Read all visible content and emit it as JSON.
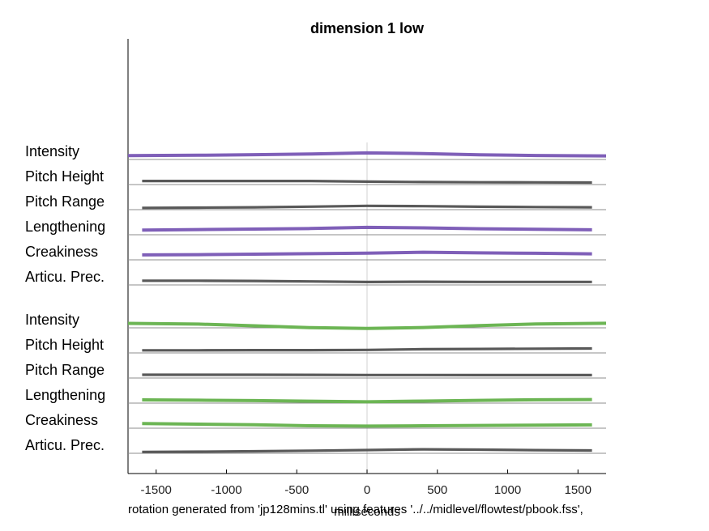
{
  "chart_data": {
    "type": "line",
    "title": "dimension  1 low",
    "xlabel": "milliseconds",
    "ylabel": "",
    "xlim": [
      -1700,
      1700
    ],
    "xticks": [
      -1500,
      -1000,
      -500,
      0,
      500,
      1000,
      1500
    ],
    "xtick_labels": [
      "-1500",
      "-1000",
      "-500",
      "0",
      "500",
      "1000",
      "1500"
    ],
    "zero_line": 0,
    "footnote": "rotation generated from 'jp128mins.tl' using features '../../midlevel/flowtest/pbook.fss',",
    "colors": {
      "purple": "#7f5fb8",
      "green": "#6cb554",
      "gray": "#595959",
      "baseline": "#8c8c8c",
      "zero": "#d9d9d9"
    },
    "groups": [
      {
        "rows": [
          {
            "label": "Intensity",
            "color": "purple",
            "x": [
              -1700,
              -1200,
              -800,
              -400,
              0,
              400,
              800,
              1200,
              1700
            ],
            "y": [
              0.5,
              0.8,
              1.3,
              1.9,
              2.7,
              2.2,
              1.2,
              0.6,
              0.3
            ]
          },
          {
            "label": "Pitch Height",
            "color": "gray",
            "x": [
              -1600,
              -1200,
              -800,
              -400,
              0,
              400,
              800,
              1200,
              1600
            ],
            "y": [
              0.3,
              0.3,
              0.3,
              0.3,
              -0.3,
              -0.6,
              -0.8,
              -0.9,
              -1.0
            ]
          },
          {
            "label": "Pitch Range",
            "color": "gray",
            "x": [
              -1600,
              -1200,
              -800,
              -400,
              0,
              400,
              800,
              1200,
              1600
            ],
            "y": [
              -1.2,
              -1.0,
              -0.7,
              -0.2,
              0.5,
              0.2,
              -0.3,
              -0.5,
              -0.7
            ]
          },
          {
            "label": "Lengthening",
            "color": "purple",
            "x": [
              -1600,
              -1200,
              -800,
              -400,
              0,
              400,
              800,
              1200,
              1600
            ],
            "y": [
              1.2,
              1.6,
              2.0,
              2.5,
              3.4,
              3.0,
              2.3,
              1.8,
              1.4
            ]
          },
          {
            "label": "Creakiness",
            "color": "purple",
            "x": [
              -1600,
              -1200,
              -800,
              -400,
              0,
              400,
              800,
              1200,
              1600
            ],
            "y": [
              1.4,
              1.6,
              2.0,
              2.4,
              2.8,
              3.6,
              3.1,
              2.7,
              2.3
            ]
          },
          {
            "label": "Articu. Prec.",
            "color": "gray",
            "x": [
              -1600,
              -1200,
              -800,
              -400,
              0,
              400,
              800,
              1200,
              1600
            ],
            "y": [
              0.8,
              0.8,
              0.6,
              0.2,
              -0.3,
              -0.1,
              -0.2,
              -0.2,
              -0.2
            ]
          }
        ]
      },
      {
        "rows": [
          {
            "label": "Intensity",
            "color": "green",
            "x": [
              -1700,
              -1200,
              -800,
              -400,
              0,
              400,
              800,
              1200,
              1700
            ],
            "y": [
              1.0,
              0.4,
              -1.0,
              -2.5,
              -3.2,
              -2.4,
              -0.8,
              0.5,
              1.1
            ]
          },
          {
            "label": "Pitch Height",
            "color": "gray",
            "x": [
              -1600,
              -1200,
              -800,
              -400,
              0,
              400,
              800,
              1200,
              1600
            ],
            "y": [
              -0.5,
              -0.5,
              -0.4,
              -0.4,
              -0.2,
              0.4,
              0.6,
              0.8,
              1.0
            ]
          },
          {
            "label": "Pitch Range",
            "color": "gray",
            "x": [
              -1600,
              -1200,
              -800,
              -400,
              0,
              400,
              800,
              1200,
              1600
            ],
            "y": [
              0.0,
              0.0,
              0.0,
              -0.1,
              -0.2,
              -0.2,
              -0.3,
              -0.3,
              -0.3
            ]
          },
          {
            "label": "Lengthening",
            "color": "green",
            "x": [
              -1600,
              -1200,
              -800,
              -400,
              0,
              400,
              800,
              1200,
              1600
            ],
            "y": [
              0.0,
              -0.3,
              -0.6,
              -1.1,
              -1.6,
              -1.0,
              -0.4,
              0.1,
              0.3
            ]
          },
          {
            "label": "Creakiness",
            "color": "green",
            "x": [
              -1600,
              -1200,
              -800,
              -400,
              0,
              400,
              800,
              1200,
              1600
            ],
            "y": [
              1.2,
              0.7,
              0.2,
              -0.7,
              -0.9,
              -0.7,
              -0.4,
              -0.2,
              0.1
            ]
          },
          {
            "label": "Articu. Prec.",
            "color": "gray",
            "x": [
              -1600,
              -1200,
              -800,
              -400,
              0,
              400,
              800,
              1200,
              1600
            ],
            "y": [
              -1.5,
              -1.3,
              -1.0,
              -0.5,
              0.0,
              0.6,
              0.3,
              -0.1,
              -0.3
            ]
          }
        ]
      }
    ]
  }
}
